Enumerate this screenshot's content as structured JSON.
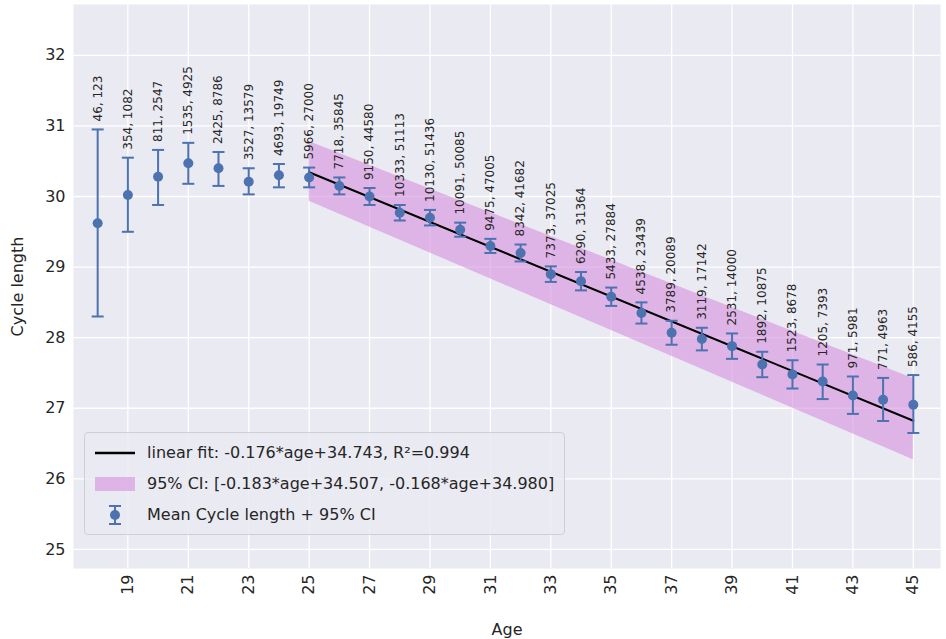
{
  "chart_data": {
    "type": "scatter",
    "x_label": "Age",
    "y_label": "Cycle length",
    "x": [
      18,
      19,
      20,
      21,
      22,
      23,
      24,
      25,
      26,
      27,
      28,
      29,
      30,
      31,
      32,
      33,
      34,
      35,
      36,
      37,
      38,
      39,
      40,
      41,
      42,
      43,
      44,
      45
    ],
    "series": [
      {
        "name": "Mean Cycle length + 95% CI",
        "type": "scatter",
        "color": "#4c72b0",
        "marker": "circle",
        "values": [
          29.62,
          30.02,
          30.28,
          30.47,
          30.4,
          30.21,
          30.3,
          30.27,
          30.15,
          30.0,
          29.77,
          29.7,
          29.53,
          29.3,
          29.2,
          28.9,
          28.8,
          28.58,
          28.35,
          28.07,
          27.98,
          27.88,
          27.62,
          27.48,
          27.38,
          27.18,
          27.12,
          27.05
        ],
        "ci_low": [
          28.3,
          29.5,
          29.88,
          30.18,
          30.15,
          30.03,
          30.13,
          30.13,
          30.03,
          29.88,
          29.66,
          29.59,
          29.43,
          29.2,
          29.08,
          28.79,
          28.67,
          28.45,
          28.2,
          27.9,
          27.82,
          27.7,
          27.44,
          27.28,
          27.13,
          26.92,
          26.82,
          26.65
        ],
        "ci_high": [
          30.95,
          30.55,
          30.66,
          30.76,
          30.63,
          30.4,
          30.46,
          30.41,
          30.27,
          30.12,
          29.88,
          29.81,
          29.63,
          29.4,
          29.32,
          29.01,
          28.93,
          28.71,
          28.5,
          28.24,
          28.14,
          28.06,
          27.8,
          27.68,
          27.62,
          27.45,
          27.43,
          27.47
        ],
        "annotations": [
          "46, 123",
          "354, 1082",
          "811, 2547",
          "1535, 4925",
          "2425, 8786",
          "3527, 13579",
          "4693, 19749",
          "5966, 27000",
          "7718, 35845",
          "9150, 44580",
          "10333, 51113",
          "10130, 51436",
          "10091, 50085",
          "9475, 47005",
          "8342, 41682",
          "7373, 37025",
          "6290, 31364",
          "5433, 27884",
          "4538, 23439",
          "3789, 20089",
          "3119, 17142",
          "2531, 14000",
          "1892, 10875",
          "1523, 8678",
          "1205, 7393",
          "971, 5981",
          "771, 4963",
          "586, 4155"
        ]
      },
      {
        "name": "linear fit: -0.176*age+34.743, R²=0.994",
        "type": "line",
        "color": "#000000",
        "line_style": "solid",
        "x": [
          25,
          45
        ],
        "values": [
          30.343,
          26.823
        ]
      },
      {
        "name": "95% CI: [-0.183*age+34.507, -0.168*age+34.980]",
        "type": "area",
        "color": "#d68fe0",
        "x": [
          25,
          45
        ],
        "lower": [
          29.932,
          26.272
        ],
        "upper": [
          30.78,
          27.42
        ]
      }
    ],
    "xlim": [
      17.2,
      45.9
    ],
    "ylim": [
      24.73,
      32.72
    ],
    "xticks": [
      19,
      21,
      23,
      25,
      27,
      29,
      31,
      33,
      35,
      37,
      39,
      41,
      43,
      45
    ],
    "yticks": [
      25,
      26,
      27,
      28,
      29,
      30,
      31,
      32
    ],
    "grid": true,
    "legend": "lower left"
  }
}
